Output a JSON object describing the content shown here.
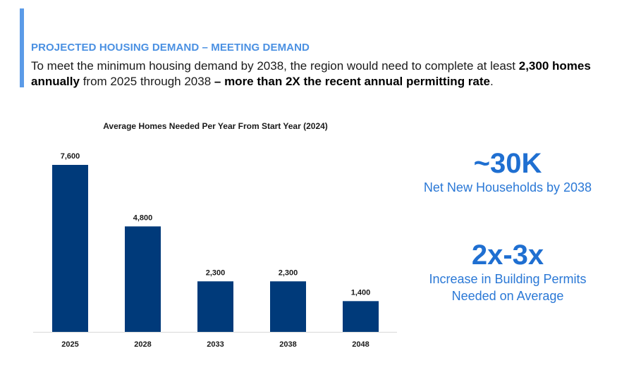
{
  "header": {
    "kicker": "PROJECTED HOUSING DEMAND – MEETING DEMAND",
    "lead_part1": "To meet the minimum housing demand by 2038, the region would need to complete at least ",
    "lead_bold1": "2,300 homes annually",
    "lead_part2": " from 2025 through 2038 ",
    "lead_bold2": "– more than 2X the recent annual permitting rate",
    "lead_end": "."
  },
  "stats": [
    {
      "value": "~30K",
      "label": "Net New Households by 2038"
    },
    {
      "value": "2x-3x",
      "label_line1": "Increase in Building Permits",
      "label_line2": "Needed on Average"
    }
  ],
  "colors": {
    "accent": "#5b9be8",
    "bar": "#003a7a",
    "stat": "#1f6fd1"
  },
  "chart_data": {
    "type": "bar",
    "title": "Average Homes Needed Per Year From Start Year (2024)",
    "categories": [
      "2025",
      "2028",
      "2033",
      "2038",
      "2048"
    ],
    "values": [
      7600,
      4800,
      2300,
      2300,
      1400
    ],
    "value_labels": [
      "7,600",
      "4,800",
      "2,300",
      "2,300",
      "1,400"
    ],
    "xlabel": "",
    "ylabel": "",
    "ylim": [
      0,
      7600
    ],
    "grid": false,
    "legend": "none"
  }
}
